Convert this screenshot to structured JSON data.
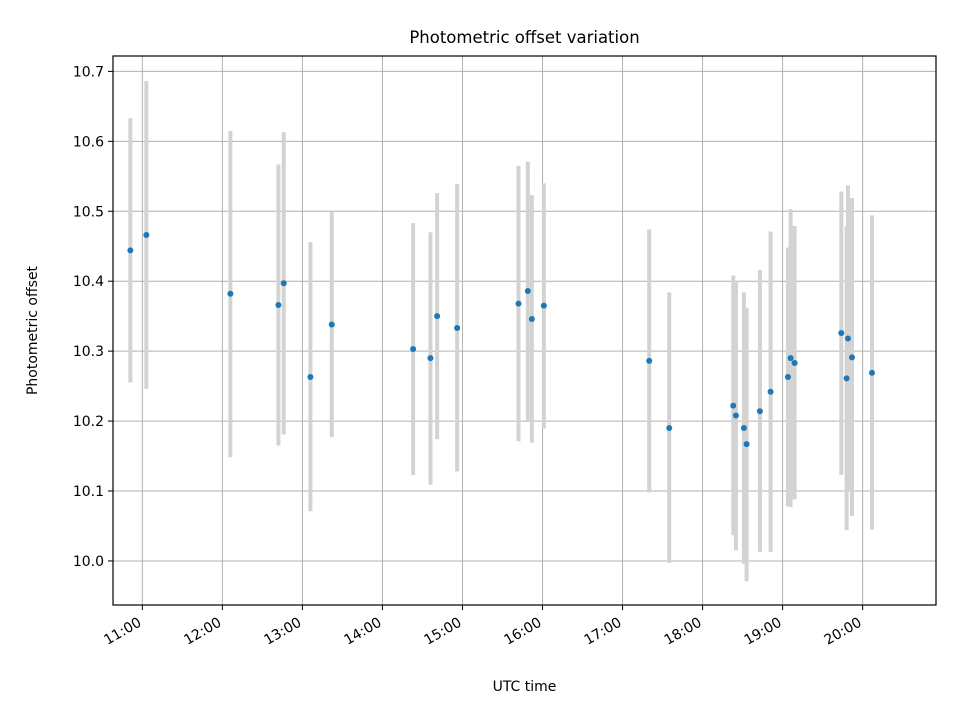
{
  "chart_data": {
    "type": "scatter",
    "title": "Photometric offset variation",
    "xlabel": "UTC time",
    "ylabel": "Photometric offset",
    "xlim": [
      "10:38",
      "20:55"
    ],
    "ylim": [
      9.937,
      10.722
    ],
    "x_ticks": [
      "11:00",
      "12:00",
      "13:00",
      "14:00",
      "15:00",
      "16:00",
      "17:00",
      "18:00",
      "19:00",
      "20:00"
    ],
    "y_ticks": [
      "10.0",
      "10.1",
      "10.2",
      "10.3",
      "10.4",
      "10.5",
      "10.6",
      "10.7"
    ],
    "grid": true,
    "point_color": "#1f77b4",
    "errorbar_color": "#d3d3d3",
    "points": [
      {
        "x": "10:51",
        "y": 10.444,
        "y_low": 10.255,
        "y_high": 10.633
      },
      {
        "x": "11:03",
        "y": 10.466,
        "y_low": 10.246,
        "y_high": 10.686
      },
      {
        "x": "12:06",
        "y": 10.382,
        "y_low": 10.148,
        "y_high": 10.615
      },
      {
        "x": "12:42",
        "y": 10.366,
        "y_low": 10.165,
        "y_high": 10.567
      },
      {
        "x": "12:46",
        "y": 10.397,
        "y_low": 10.181,
        "y_high": 10.613
      },
      {
        "x": "13:06",
        "y": 10.263,
        "y_low": 10.071,
        "y_high": 10.456
      },
      {
        "x": "13:22",
        "y": 10.338,
        "y_low": 10.177,
        "y_high": 10.499
      },
      {
        "x": "14:23",
        "y": 10.303,
        "y_low": 10.123,
        "y_high": 10.483
      },
      {
        "x": "14:36",
        "y": 10.29,
        "y_low": 10.109,
        "y_high": 10.47
      },
      {
        "x": "14:41",
        "y": 10.35,
        "y_low": 10.174,
        "y_high": 10.526
      },
      {
        "x": "14:56",
        "y": 10.333,
        "y_low": 10.128,
        "y_high": 10.539
      },
      {
        "x": "15:42",
        "y": 10.368,
        "y_low": 10.171,
        "y_high": 10.565
      },
      {
        "x": "15:49",
        "y": 10.386,
        "y_low": 10.201,
        "y_high": 10.571
      },
      {
        "x": "15:52",
        "y": 10.346,
        "y_low": 10.169,
        "y_high": 10.523
      },
      {
        "x": "16:01",
        "y": 10.365,
        "y_low": 10.189,
        "y_high": 10.54
      },
      {
        "x": "17:20",
        "y": 10.286,
        "y_low": 10.098,
        "y_high": 10.474
      },
      {
        "x": "17:35",
        "y": 10.19,
        "y_low": 9.997,
        "y_high": 10.384
      },
      {
        "x": "18:23",
        "y": 10.222,
        "y_low": 10.037,
        "y_high": 10.408
      },
      {
        "x": "18:25",
        "y": 10.208,
        "y_low": 10.015,
        "y_high": 10.401
      },
      {
        "x": "18:31",
        "y": 10.19,
        "y_low": 9.996,
        "y_high": 10.384
      },
      {
        "x": "18:33",
        "y": 10.167,
        "y_low": 9.971,
        "y_high": 10.362
      },
      {
        "x": "18:43",
        "y": 10.214,
        "y_low": 10.013,
        "y_high": 10.416
      },
      {
        "x": "18:51",
        "y": 10.242,
        "y_low": 10.013,
        "y_high": 10.471
      },
      {
        "x": "19:04",
        "y": 10.263,
        "y_low": 10.078,
        "y_high": 10.448
      },
      {
        "x": "19:06",
        "y": 10.29,
        "y_low": 10.077,
        "y_high": 10.503
      },
      {
        "x": "19:09",
        "y": 10.283,
        "y_low": 10.088,
        "y_high": 10.479
      },
      {
        "x": "19:44",
        "y": 10.326,
        "y_low": 10.123,
        "y_high": 10.528
      },
      {
        "x": "19:48",
        "y": 10.261,
        "y_low": 10.044,
        "y_high": 10.478
      },
      {
        "x": "19:49",
        "y": 10.318,
        "y_low": 10.1,
        "y_high": 10.537
      },
      {
        "x": "19:52",
        "y": 10.291,
        "y_low": 10.064,
        "y_high": 10.519
      },
      {
        "x": "20:07",
        "y": 10.269,
        "y_low": 10.045,
        "y_high": 10.494
      }
    ]
  }
}
